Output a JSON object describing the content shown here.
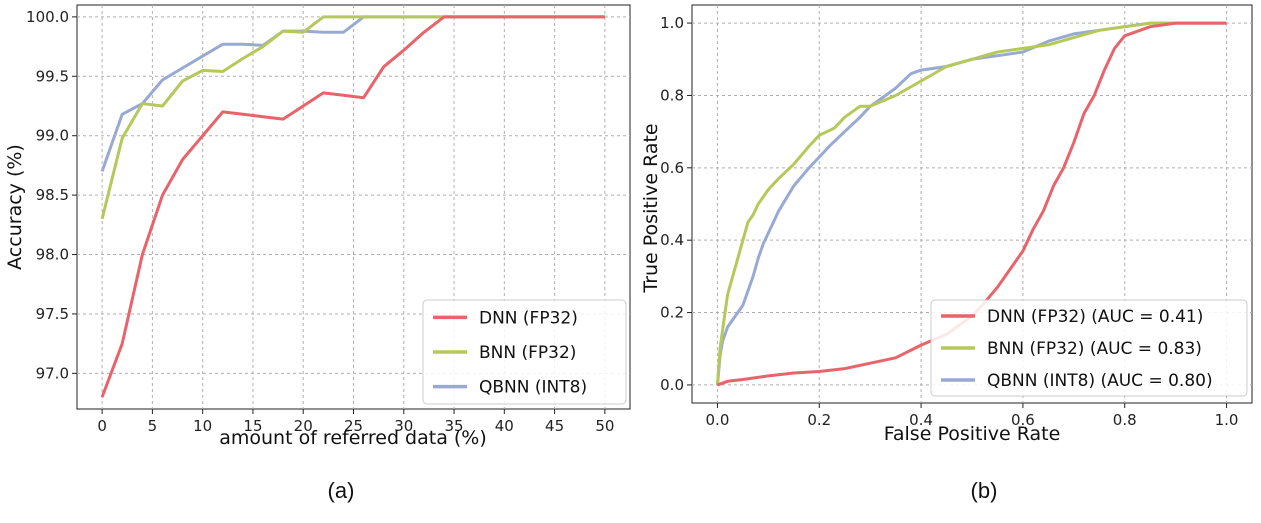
{
  "colors": {
    "dnn": "#e8636a",
    "bnn": "#b5c95a",
    "qbnn": "#98aad4",
    "grid": "#b0b0b0"
  },
  "chart_data": [
    {
      "type": "line",
      "caption": "(a)",
      "xlabel": "amount of referred data (%)",
      "ylabel": "Accuracy (%)",
      "xlim": [
        -2.5,
        52.5
      ],
      "ylim": [
        96.7,
        100.1
      ],
      "xticks": [
        "0",
        "5",
        "10",
        "15",
        "20",
        "25",
        "30",
        "35",
        "40",
        "45",
        "50"
      ],
      "yticks": [
        "97.0",
        "97.5",
        "98.0",
        "98.5",
        "99.0",
        "99.5",
        "100.0"
      ],
      "grid": true,
      "legend_position": "lower-right",
      "series": [
        {
          "name": "DNN (FP32)",
          "color_key": "dnn",
          "x": [
            0,
            2,
            4,
            6,
            8,
            10,
            12,
            14,
            16,
            18,
            20,
            22,
            24,
            26,
            28,
            30,
            32,
            34,
            36,
            38,
            40,
            42,
            44,
            46,
            48,
            50
          ],
          "y": [
            96.8,
            97.25,
            98.0,
            98.5,
            98.8,
            99.0,
            99.2,
            99.18,
            99.16,
            99.14,
            99.25,
            99.36,
            99.34,
            99.32,
            99.58,
            99.72,
            99.87,
            100,
            100,
            100,
            100,
            100,
            100,
            100,
            100,
            100
          ]
        },
        {
          "name": "BNN (FP32)",
          "color_key": "bnn",
          "x": [
            0,
            2,
            4,
            6,
            8,
            10,
            12,
            14,
            16,
            18,
            20,
            22,
            24,
            26,
            28,
            30,
            32,
            34,
            36,
            38,
            40,
            42,
            44,
            46,
            48,
            50
          ],
          "y": [
            98.3,
            98.98,
            99.27,
            99.25,
            99.46,
            99.55,
            99.54,
            99.65,
            99.75,
            99.88,
            99.87,
            100,
            100,
            100,
            100,
            100,
            100,
            100,
            100,
            100,
            100,
            100,
            100,
            100,
            100,
            100
          ]
        },
        {
          "name": "QBNN (INT8)",
          "color_key": "qbnn",
          "x": [
            0,
            2,
            4,
            6,
            8,
            10,
            12,
            14,
            16,
            18,
            20,
            22,
            24,
            26,
            28,
            30,
            32,
            34,
            36,
            38,
            40,
            42,
            44,
            46,
            48,
            50
          ],
          "y": [
            98.7,
            99.18,
            99.27,
            99.47,
            99.57,
            99.67,
            99.77,
            99.77,
            99.76,
            99.88,
            99.88,
            99.87,
            99.87,
            100,
            100,
            100,
            100,
            100,
            100,
            100,
            100,
            100,
            100,
            100,
            100,
            100
          ]
        }
      ]
    },
    {
      "type": "line",
      "caption": "(b)",
      "xlabel": "False Positive Rate",
      "ylabel": "True Positive Rate",
      "xlim": [
        -0.05,
        1.05
      ],
      "ylim": [
        -0.05,
        1.05
      ],
      "xticks": [
        "0.0",
        "0.2",
        "0.4",
        "0.6",
        "0.8",
        "1.0"
      ],
      "yticks": [
        "0.0",
        "0.2",
        "0.4",
        "0.6",
        "0.8",
        "1.0"
      ],
      "grid": true,
      "legend_position": "lower-right",
      "series": [
        {
          "name": "DNN (FP32) (AUC = 0.41)",
          "color_key": "dnn",
          "x": [
            0,
            0.02,
            0.05,
            0.1,
            0.15,
            0.2,
            0.25,
            0.3,
            0.35,
            0.4,
            0.45,
            0.5,
            0.52,
            0.55,
            0.58,
            0.6,
            0.62,
            0.64,
            0.66,
            0.68,
            0.7,
            0.72,
            0.74,
            0.76,
            0.78,
            0.8,
            0.85,
            0.9,
            0.95,
            1.0
          ],
          "y": [
            0,
            0.01,
            0.015,
            0.025,
            0.033,
            0.037,
            0.045,
            0.06,
            0.075,
            0.11,
            0.14,
            0.19,
            0.22,
            0.27,
            0.33,
            0.37,
            0.43,
            0.48,
            0.55,
            0.6,
            0.67,
            0.75,
            0.8,
            0.87,
            0.93,
            0.965,
            0.99,
            1.0,
            1.0,
            1.0
          ]
        },
        {
          "name": "BNN (FP32) (AUC = 0.83)",
          "color_key": "bnn",
          "x": [
            0,
            0.005,
            0.01,
            0.02,
            0.03,
            0.04,
            0.05,
            0.06,
            0.07,
            0.08,
            0.1,
            0.12,
            0.15,
            0.18,
            0.2,
            0.23,
            0.25,
            0.28,
            0.3,
            0.35,
            0.4,
            0.45,
            0.5,
            0.55,
            0.6,
            0.65,
            0.7,
            0.75,
            0.8,
            0.85,
            0.9,
            0.95,
            1.0
          ],
          "y": [
            0,
            0.1,
            0.15,
            0.25,
            0.3,
            0.35,
            0.4,
            0.45,
            0.47,
            0.5,
            0.54,
            0.57,
            0.61,
            0.66,
            0.69,
            0.71,
            0.74,
            0.77,
            0.77,
            0.8,
            0.84,
            0.88,
            0.9,
            0.92,
            0.93,
            0.94,
            0.96,
            0.98,
            0.99,
            1.0,
            1.0,
            1.0,
            1.0
          ]
        },
        {
          "name": "QBNN (INT8) (AUC = 0.80)",
          "color_key": "qbnn",
          "x": [
            0,
            0.005,
            0.01,
            0.02,
            0.03,
            0.04,
            0.05,
            0.06,
            0.07,
            0.08,
            0.09,
            0.1,
            0.12,
            0.15,
            0.18,
            0.2,
            0.22,
            0.25,
            0.28,
            0.3,
            0.33,
            0.35,
            0.38,
            0.4,
            0.45,
            0.5,
            0.55,
            0.6,
            0.65,
            0.7,
            0.75,
            0.8,
            0.85,
            0.9,
            0.95,
            1.0
          ],
          "y": [
            0,
            0.08,
            0.12,
            0.16,
            0.18,
            0.2,
            0.22,
            0.26,
            0.3,
            0.35,
            0.39,
            0.42,
            0.48,
            0.55,
            0.6,
            0.63,
            0.66,
            0.7,
            0.74,
            0.77,
            0.8,
            0.82,
            0.86,
            0.87,
            0.88,
            0.9,
            0.91,
            0.92,
            0.95,
            0.97,
            0.98,
            0.99,
            1.0,
            1.0,
            1.0,
            1.0
          ]
        }
      ]
    }
  ]
}
